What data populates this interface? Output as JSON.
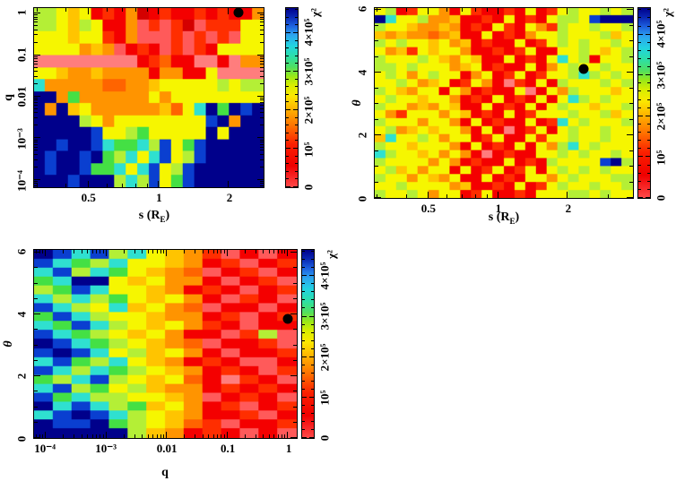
{
  "figure_note": "Three chi-squared parameter-grid heat maps from a binary microlens fit; black filled circle marks the best-fit solution in each plane.",
  "palette": {
    "K": "#00008b",
    "B": "#0a3fd0",
    "b": "#1e90ff",
    "C": "#2fe0d0",
    "G": "#44e044",
    "g": "#b4ef36",
    "Y": "#f6f600",
    "o": "#ffc400",
    "O": "#ff9400",
    "Q": "#ff6400",
    "r": "#ff2e00",
    "R": "#f40000",
    "D": "#d40000",
    "s": "#ff5a5a",
    "S": "#ff7d7d"
  },
  "palette_note": "Grid code -> cell color. Red/orange = low chi2 (~0-1.5e5), yellow/green = mid (~2-3e5), cyan/blue = high (~3.5-4.2e5), navy = highest (>4.4e5).",
  "colorbar": {
    "title": "χ²",
    "tick_labels": [
      "0",
      "10⁵",
      "2×10⁵",
      "3×10⁵",
      "4×10⁵"
    ],
    "tick_values": [
      0,
      100000,
      200000,
      300000,
      400000
    ],
    "minor_step": 20000,
    "range": [
      0,
      465000
    ],
    "gradient": [
      "#ff4a4a 0%",
      "#ef0000 12%",
      "#fb2000 24%",
      "#ff7000 34%",
      "#ffaf00 43%",
      "#fce800 51%",
      "#d8ee00 57%",
      "#98e818 62%",
      "#50df60 67%",
      "#2cdfa8 73%",
      "#22d3e0 79%",
      "#2da4ef 85%",
      "#1e62e0 90%",
      "#0a28b4 95%",
      "#00008b 100%"
    ]
  },
  "chart_data": [
    {
      "id": "chi2_map_s_vs_q",
      "type": "heatmap",
      "xlabel": {
        "prefix": "s (R",
        "sub": "E",
        "suffix": ")"
      },
      "ylabel": "q",
      "ylabel_italic": false,
      "xscale": "log",
      "yscale": "log",
      "xlim": [
        0.29,
        2.82
      ],
      "ylim": [
        6.7e-05,
        1.35
      ],
      "xticks": [
        {
          "v": 0.5,
          "label": "0.5"
        },
        {
          "v": 1,
          "label": "1"
        },
        {
          "v": 2,
          "label": "2"
        }
      ],
      "yticks": [
        {
          "v": 1,
          "label": "1"
        },
        {
          "v": 0.1,
          "label": "0.1"
        },
        {
          "v": 0.01,
          "label": "0.01"
        },
        {
          "v": 0.001,
          "label": "10⁻³"
        },
        {
          "v": 0.0001,
          "label": "10⁻⁴"
        }
      ],
      "marker": {
        "x": 2.2,
        "y": 1.05,
        "symbol": "filled-circle",
        "color": "#000000"
      },
      "grid": [
        "ggYoYRrRODRrRRrRrRRO",
        "ggYogYRROsrsrDsrrrYY",
        "YYYoYYrROsssrsrsrsYY",
        "YYYYOoOsRrRsrsrRYYYY",
        "SSSSSSSSSRrQRRSSRSOO",
        "YYoOOoOOOOROORRYSSSS",
        "COOOOOQQOOoYYYYYgYgg",
        "KKOGOOOOOOYOYYYYYYYY",
        "KOKoYOOOOOOoQYCKGKBK",
        "KKKKgYOYYYYYYYYBKOKK",
        "KKKKKBYYgGYYYYYKYKKK",
        "KKBKKBCGGCgBYGBKKKKK",
        "KBKKBKGgCYCBYgBKKKKK",
        "KBKKBGGCYCBYgBKKKKKK",
        "KKKBKKKgCgBYGBKKKKKK"
      ]
    },
    {
      "id": "chi2_map_s_vs_theta",
      "type": "heatmap",
      "xlabel": {
        "prefix": "s (R",
        "sub": "E",
        "suffix": ")"
      },
      "ylabel": "θ",
      "ylabel_italic": true,
      "xscale": "log",
      "yscale": "linear",
      "xlim": [
        0.291,
        3.83
      ],
      "ylim": [
        0,
        6.06
      ],
      "xticks": [
        {
          "v": 0.5,
          "label": "0.5"
        },
        {
          "v": 1,
          "label": "1"
        },
        {
          "v": 2,
          "label": "2"
        }
      ],
      "yticks": [
        {
          "v": 0,
          "label": "0"
        },
        {
          "v": 2,
          "label": "2"
        },
        {
          "v": 4,
          "label": "4"
        },
        {
          "v": 6,
          "label": "6"
        }
      ],
      "marker": {
        "x": 2.35,
        "y": 4.13,
        "symbol": "filled-circle",
        "color": "#000000"
      },
      "grid": [
        "YgRrYYORYrRRrRYRrYgYYgYg",
        "KCYYgOOoRRrRYRrRYggYBKKK",
        "gYYoOOoORrRYrRYOrgYYgYYg",
        "oOoOOQOoRRYRrROYYgYYYgoY",
        "gYgYYoYOoRrRRYRrYgYgYYgY",
        "YOorYoYYORRrRrYRRYYgYoYg",
        "gYYYgYoOYoRRYRrRYCYgRYYg",
        "ggYgYYYOoYRrRRYROYgYYgYY",
        "YgYOYgYYROYRrYRrYYgCgYgY",
        "YYgYOoYRrYORSrRYRgYYYgYg",
        "gYoOYYRYORrRRYSRYOgYYYoY",
        "YgYYoYYORrRYRrRYRYCgYgYY",
        "gYYOoOYoRRYRrRYRYgYYoYYg",
        "YOrYYYOYoRrRYRrYYYgYYgoY",
        "gYYYOYYORYRrRRYRrCYgYYYg",
        "YgOoYoYYORYRSRrYRYgYYgYY",
        "oCYYgYOYYRrYRRYrYYgYYgYY",
        "gYYoYYYORYRrRYRYOgCYgYYY",
        "CgYYoYOYORSRrRRYYgYgYYgY",
        "gYYYYOYORrRRYRrRgYYYYBKg",
        "YgoYOYYRYRrYRrYRYgYgYgYY",
        "gYYOYoOYRRYRrRYYOYgYYYgg",
        "YYgYYYYOoRRrRYRrYgYYgYYg",
        "gYYgYOYYRrYRRrRYYYggYgYY"
      ]
    },
    {
      "id": "chi2_map_q_vs_theta",
      "type": "heatmap",
      "xlabel": {
        "prefix": "q",
        "sub": "",
        "suffix": ""
      },
      "ylabel": "θ",
      "ylabel_italic": true,
      "xscale": "log",
      "yscale": "linear",
      "xlim": [
        6.4e-05,
        1.4
      ],
      "ylim": [
        0,
        6.09
      ],
      "xticks": [
        {
          "v": 0.0001,
          "label": "10⁻⁴"
        },
        {
          "v": 0.001,
          "label": "10⁻³"
        },
        {
          "v": 0.01,
          "label": "0.01"
        },
        {
          "v": 0.1,
          "label": "0.1"
        },
        {
          "v": 1,
          "label": "1"
        }
      ],
      "yticks": [
        {
          "v": 0,
          "label": "0"
        },
        {
          "v": 2,
          "label": "2"
        },
        {
          "v": 4,
          "label": "4"
        },
        {
          "v": 6,
          "label": "6"
        }
      ],
      "marker": {
        "x": 1.0,
        "y": 3.85,
        "symbol": "filled-circle",
        "color": "#000000"
      },
      "grid": [
        "KBCBgCYoOrsRsR",
        "BCGgCYYoORrsRr",
        "CBgCGYoOQsRrsR",
        "GCKKYoYOORsRrs",
        "gGBCYYoORrRsRr",
        "CgCgGYoYORsrRs",
        "BCgYCoYOQsRRsR",
        "GBCgYYoOORrsRr",
        "CGBCgYoYOrRsRR",
        "BCGgYoYORRsrgs",
        "KBCGgYoOQsRRrs",
        "BKBCYgoYORsRRr",
        "CBGgCYoORrRssR",
        "BCgCGgYoORrRsr",
        "GgCBgYoYQRSrRs",
        "CBgGYgoOORrRrR",
        "BGCggYYoOsRrRs",
        "KCBCgGoYORrsRr",
        "CBKBCgYoORRrsR",
        "KBBKGgYoQrsRRr",
        "KKKKKgoORrRsRs"
      ]
    }
  ]
}
